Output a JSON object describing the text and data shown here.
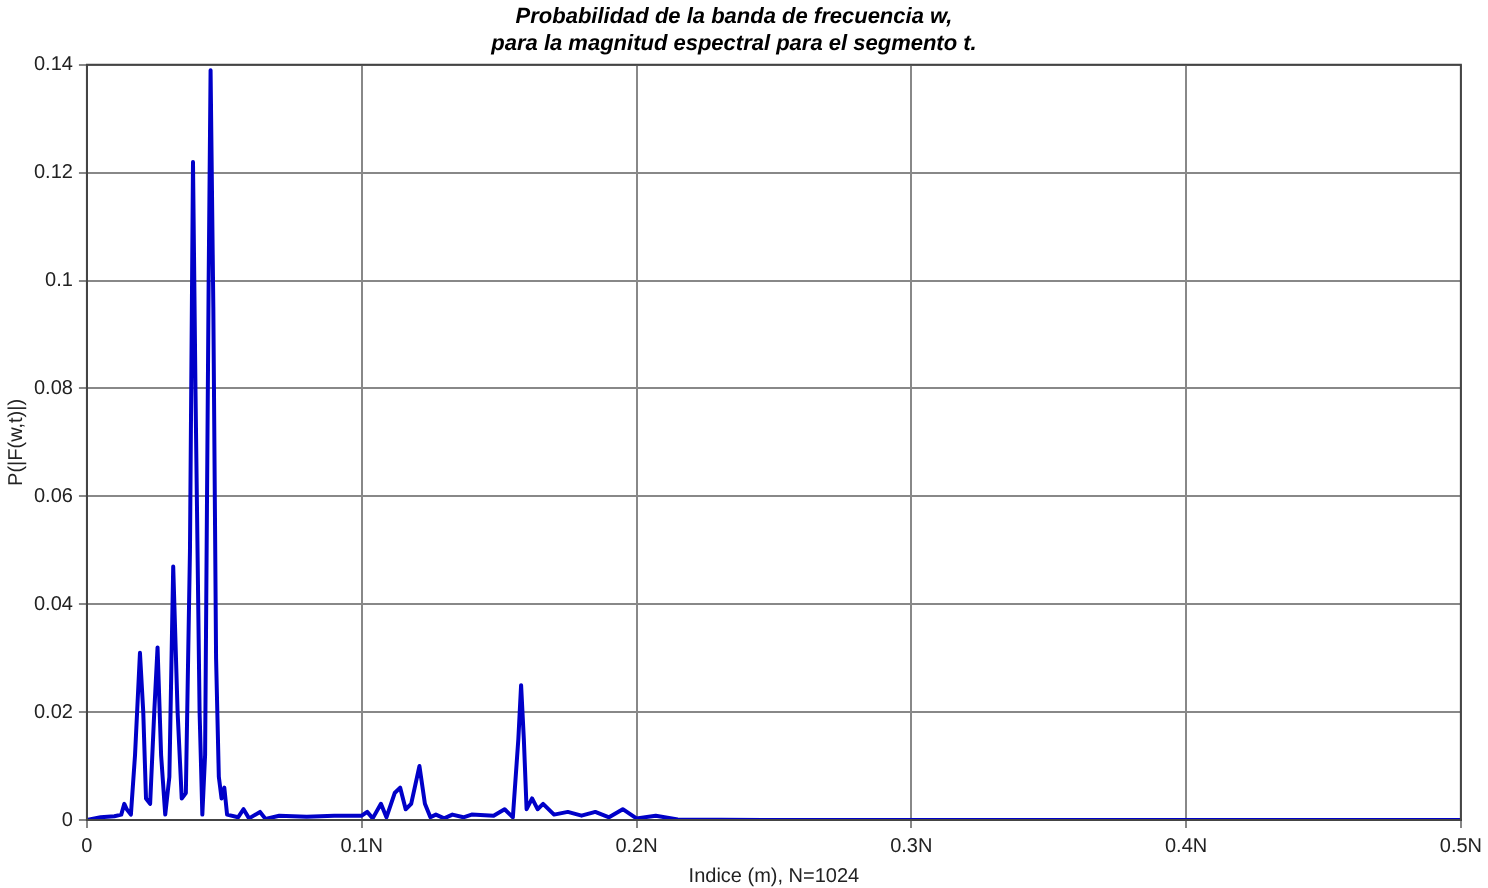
{
  "chart_data": {
    "type": "line",
    "title": [
      "Probabilidad de la banda de frecuencia w,",
      "para la magnitud espectral para el segmento t."
    ],
    "xlabel": "Indice (m), N=1024",
    "ylabel": "P(|F(w,t)|)",
    "x": [
      0,
      0.005,
      0.01,
      0.0125,
      0.0136,
      0.0145,
      0.016,
      0.0175,
      0.0193,
      0.0205,
      0.0215,
      0.023,
      0.0245,
      0.0257,
      0.027,
      0.0285,
      0.03,
      0.0314,
      0.033,
      0.0345,
      0.036,
      0.0375,
      0.0386,
      0.0395,
      0.041,
      0.042,
      0.043,
      0.0443,
      0.045,
      0.046,
      0.047,
      0.048,
      0.049,
      0.05,
      0.051,
      0.055,
      0.057,
      0.059,
      0.063,
      0.065,
      0.07,
      0.08,
      0.09,
      0.1,
      0.102,
      0.104,
      0.107,
      0.109,
      0.112,
      0.114,
      0.116,
      0.118,
      0.121,
      0.123,
      0.125,
      0.127,
      0.13,
      0.133,
      0.137,
      0.14,
      0.148,
      0.152,
      0.155,
      0.157,
      0.158,
      0.159,
      0.16,
      0.162,
      0.164,
      0.166,
      0.17,
      0.175,
      0.18,
      0.185,
      0.19,
      0.195,
      0.2,
      0.207,
      0.215,
      0.25,
      0.5
    ],
    "series": [
      {
        "color": "#0000c8",
        "values": [
          0,
          0.0005,
          0.0007,
          0.001,
          0.003,
          0.002,
          0.001,
          0.012,
          0.031,
          0.02,
          0.004,
          0.003,
          0.02,
          0.032,
          0.012,
          0.001,
          0.008,
          0.047,
          0.02,
          0.004,
          0.005,
          0.05,
          0.122,
          0.08,
          0.02,
          0.001,
          0.012,
          0.1,
          0.139,
          0.095,
          0.03,
          0.008,
          0.004,
          0.006,
          0.001,
          0.0005,
          0.002,
          0.0003,
          0.0015,
          0.0002,
          0.0008,
          0.0006,
          0.0008,
          0.0008,
          0.0015,
          0.0003,
          0.003,
          0.0005,
          0.005,
          0.006,
          0.002,
          0.003,
          0.01,
          0.003,
          0.0005,
          0.001,
          0.0003,
          0.001,
          0.0005,
          0.001,
          0.0008,
          0.002,
          0.0005,
          0.015,
          0.025,
          0.015,
          0.002,
          0.004,
          0.002,
          0.003,
          0.001,
          0.0015,
          0.0008,
          0.0015,
          0.0005,
          0.002,
          0.0003,
          0.0008,
          0.0001,
          0,
          0
        ]
      }
    ],
    "xlim": [
      0,
      0.5
    ],
    "xticks": [
      0,
      {
        "value": 0.1,
        "label": "0.1N"
      },
      {
        "value": 0.2,
        "label": "0.2N"
      },
      {
        "value": 0.3,
        "label": "0.3N"
      },
      {
        "value": 0.4,
        "label": "0.4N"
      },
      {
        "value": 0.5,
        "label": "0.5N"
      }
    ],
    "ylim": [
      0,
      0.14
    ],
    "yticks": [
      0,
      0.02,
      0.04,
      0.06,
      0.08,
      0.1,
      0.12,
      0.14
    ],
    "grid": true,
    "legend": false,
    "marker": "none",
    "line_style": "solid"
  }
}
